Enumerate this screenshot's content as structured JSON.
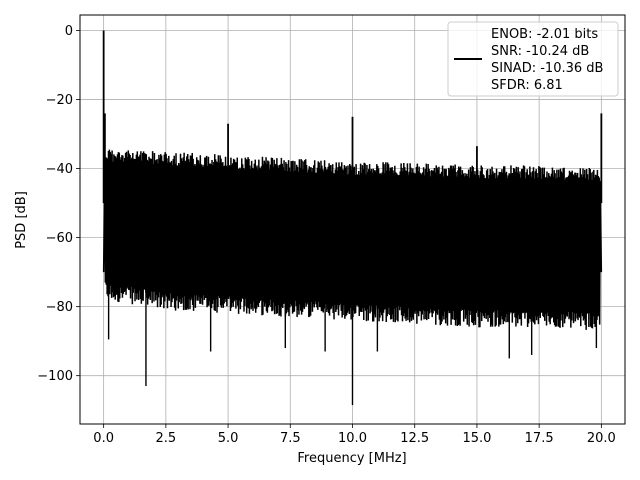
{
  "chart_data": {
    "type": "line",
    "xlabel": "Frequency [MHz]",
    "ylabel": "PSD [dB]",
    "xlim": [
      -0.95,
      20.95
    ],
    "ylim": [
      -114,
      4.5
    ],
    "xticks": [
      0.0,
      2.5,
      5.0,
      7.5,
      10.0,
      12.5,
      15.0,
      17.5,
      20.0
    ],
    "xtick_labels": [
      "0.0",
      "2.5",
      "5.0",
      "7.5",
      "10.0",
      "12.5",
      "15.0",
      "17.5",
      "20.0"
    ],
    "yticks": [
      0,
      -20,
      -40,
      -60,
      -80,
      -100
    ],
    "ytick_labels": [
      "0",
      "−20",
      "−40",
      "−60",
      "−80",
      "−100"
    ],
    "grid": true,
    "legend_position": "top-right",
    "legend_lines": [
      "ENOB: -2.01 bits",
      "SNR: -10.24 dB",
      "SINAD: -10.36 dB",
      "SFDR: 6.81"
    ],
    "series": [
      {
        "color": "#000000",
        "noise_band": {
          "x": [
            0.05,
            2.5,
            5.0,
            7.5,
            10.0,
            12.5,
            15.0,
            17.5,
            19.95
          ],
          "upper": [
            -34,
            -35,
            -36,
            -37,
            -38,
            -38,
            -39,
            -39,
            -40
          ],
          "lower": [
            -78,
            -81,
            -82,
            -83,
            -84,
            -85,
            -86,
            -86,
            -87
          ]
        },
        "spikes": [
          {
            "x": 0.0,
            "y": 0
          },
          {
            "x": 0.05,
            "y": -24
          },
          {
            "x": 5.0,
            "y": -27
          },
          {
            "x": 10.0,
            "y": -25
          },
          {
            "x": 15.0,
            "y": -33.5
          },
          {
            "x": 20.0,
            "y": -24
          }
        ],
        "dips": [
          {
            "x": 1.7,
            "y": -103
          },
          {
            "x": 10.0,
            "y": -108.5
          },
          {
            "x": 0.2,
            "y": -89.5
          },
          {
            "x": 4.3,
            "y": -93
          },
          {
            "x": 7.3,
            "y": -92
          },
          {
            "x": 8.9,
            "y": -93
          },
          {
            "x": 11.0,
            "y": -93
          },
          {
            "x": 16.3,
            "y": -95
          },
          {
            "x": 17.2,
            "y": -94
          },
          {
            "x": 19.8,
            "y": -92
          }
        ]
      }
    ]
  }
}
